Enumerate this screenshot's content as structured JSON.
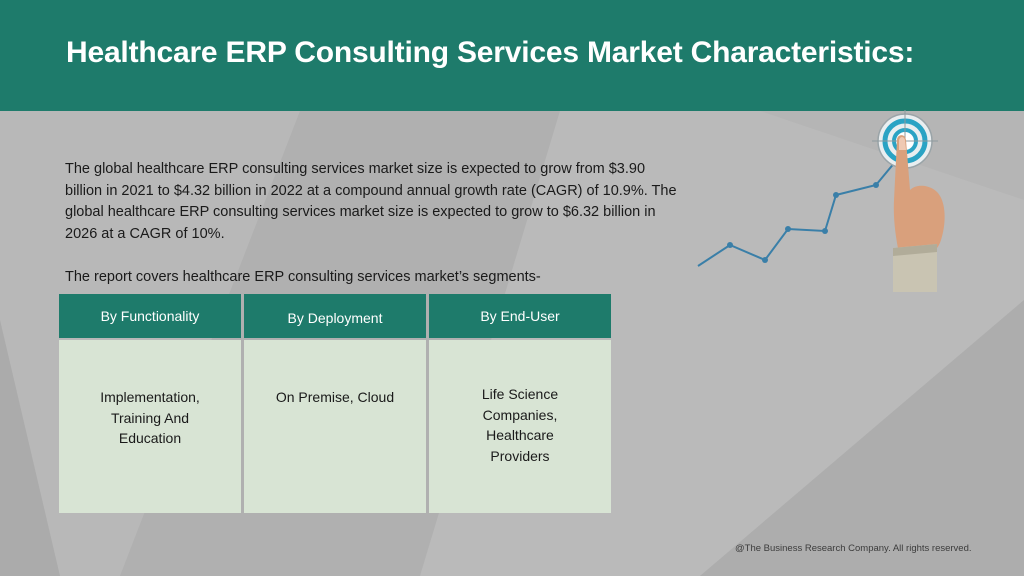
{
  "header": {
    "title": "Healthcare ERP Consulting Services Market Characteristics:"
  },
  "body": {
    "intro": "The global healthcare ERP consulting services market size is expected to grow from $3.90 billion in 2021 to $4.32 billion in 2022 at a compound annual growth rate (CAGR) of 10.9%. The global healthcare ERP consulting services market size is expected to grow to $6.32 billion in 2026 at a CAGR of 10%.",
    "segments_intro": "The report covers healthcare ERP consulting services market’s segments-"
  },
  "segments": {
    "columns": [
      {
        "header": "By Functionality",
        "value": "Implementation, Training And Education"
      },
      {
        "header": "By Deployment",
        "value": "On Premise, Cloud"
      },
      {
        "header": "By End-User",
        "value": "Life Science Companies, Healthcare Providers"
      }
    ]
  },
  "illustration": {
    "icon": "growth-target-hand-icon",
    "colors": {
      "line": "#3a7fa8",
      "target": "#2aa3c4"
    }
  },
  "footer": {
    "copyright": "@The Business Research Company. All rights reserved."
  },
  "theme": {
    "accent": "#1e7b6b",
    "cell_bg": "#d8e4d4",
    "background": "#b4b4b4"
  }
}
